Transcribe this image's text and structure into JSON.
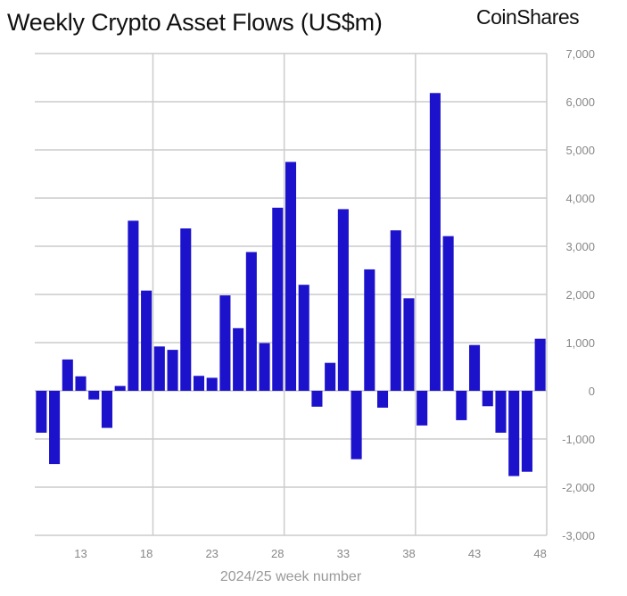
{
  "header": {
    "title": "Weekly Crypto Asset Flows (US$m)",
    "logo": "CoinShares"
  },
  "chart_data": {
    "type": "bar",
    "title": "Weekly Crypto Asset Flows (US$m)",
    "xlabel": "2024/25 week number",
    "ylabel": "",
    "ylim": [
      -3000,
      7000
    ],
    "y_axis_position": "right",
    "yticks": [
      -3000,
      -2000,
      -1000,
      0,
      1000,
      2000,
      3000,
      4000,
      5000,
      6000,
      7000
    ],
    "ytick_labels": [
      "-3,000",
      "-2,000",
      "-1,000",
      "0",
      "1,000",
      "2,000",
      "3,000",
      "4,000",
      "5,000",
      "6,000",
      "7,000"
    ],
    "xtick_labels": [
      "13",
      "18",
      "23",
      "28",
      "33",
      "38",
      "43",
      "48"
    ],
    "grid": true,
    "bar_color": "#1c12cc",
    "x": [
      10,
      11,
      12,
      13,
      14,
      15,
      16,
      17,
      18,
      19,
      20,
      21,
      22,
      23,
      24,
      25,
      26,
      27,
      28,
      29,
      30,
      31,
      32,
      33,
      34,
      35,
      36,
      37,
      38,
      39,
      40,
      41,
      42,
      43,
      44,
      45,
      46,
      47,
      48
    ],
    "values": [
      -870,
      -1520,
      650,
      300,
      -180,
      -770,
      100,
      3530,
      2080,
      920,
      850,
      3370,
      310,
      270,
      1980,
      1300,
      2880,
      990,
      3800,
      4750,
      2200,
      -330,
      580,
      3770,
      -1420,
      2520,
      -350,
      3330,
      1920,
      -720,
      6180,
      3210,
      -610,
      950,
      -320,
      -870,
      -1770,
      -1680,
      1080
    ]
  }
}
